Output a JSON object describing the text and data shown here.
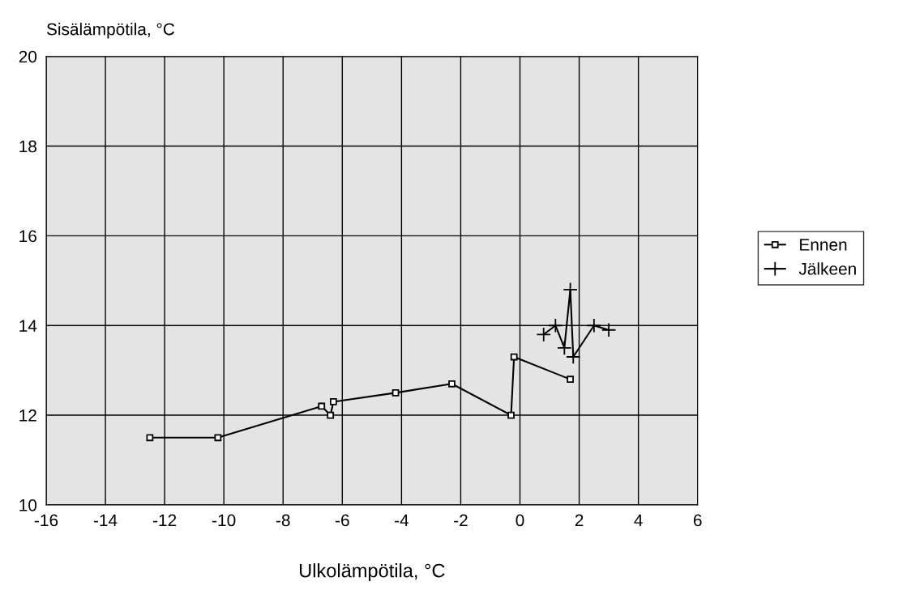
{
  "chart_data": {
    "type": "line",
    "ylabel": "Sisälämpötila, °C",
    "xlabel": "Ulkolämpötila, °C",
    "xlim": [
      -16,
      6
    ],
    "xticks": [
      -16,
      -14,
      -12,
      -10,
      -8,
      -6,
      -4,
      -2,
      0,
      2,
      4,
      6
    ],
    "ylim": [
      10,
      20
    ],
    "yticks": [
      10,
      12,
      14,
      16,
      18,
      20
    ],
    "grid": true,
    "legend": "right",
    "series": [
      {
        "name": "Ennen",
        "color": "#000000",
        "marker": "square",
        "x": [
          -12.5,
          -10.2,
          -6.7,
          -6.4,
          -6.3,
          -4.2,
          -2.3,
          -0.3,
          -0.2,
          1.7
        ],
        "values": [
          11.5,
          11.5,
          12.2,
          12.0,
          12.3,
          12.5,
          12.7,
          12.0,
          13.3,
          12.8
        ]
      },
      {
        "name": "Jälkeen",
        "color": "#000000",
        "marker": "cross",
        "x": [
          0.8,
          1.2,
          1.5,
          1.7,
          1.8,
          2.5,
          3.0
        ],
        "values": [
          13.8,
          14.0,
          13.5,
          14.8,
          13.3,
          14.0,
          13.9
        ]
      }
    ]
  }
}
